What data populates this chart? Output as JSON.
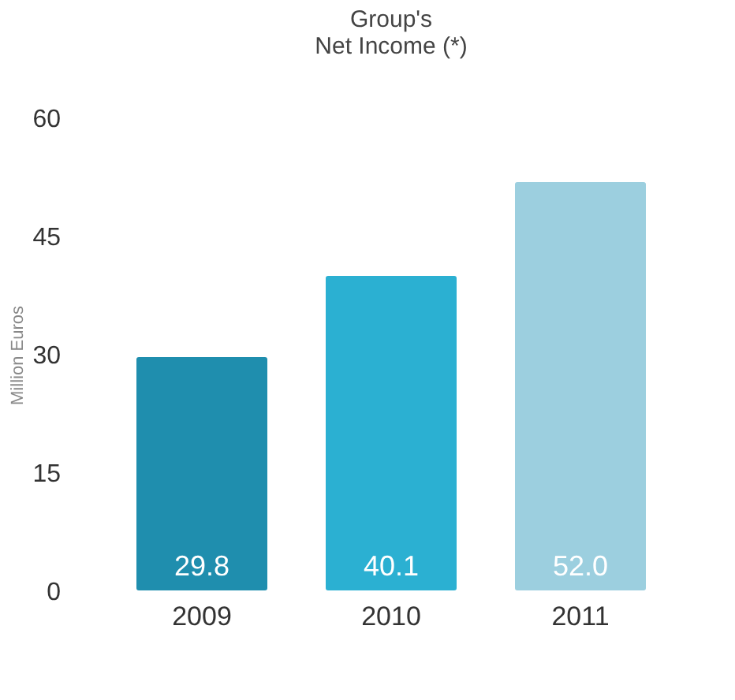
{
  "chart_data": {
    "type": "bar",
    "title": [
      "Group's",
      "Net Income (*)"
    ],
    "ylabel": "Million Euros",
    "categories": [
      "2009",
      "2010",
      "2011"
    ],
    "values": [
      29.8,
      40.1,
      52.0
    ],
    "colors": [
      "#1f8eae",
      "#2bb0d2",
      "#9ccfdf"
    ],
    "value_labels": [
      "29.8",
      "40.1",
      "52.0"
    ],
    "ylim": [
      0,
      60
    ],
    "yticks": [
      0,
      15,
      30,
      45,
      60
    ],
    "grid": false
  }
}
